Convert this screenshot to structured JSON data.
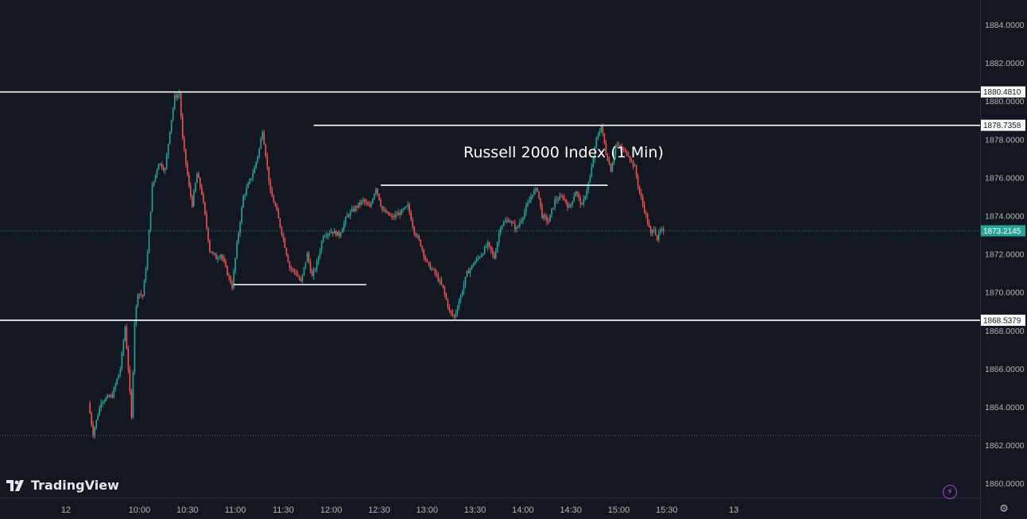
{
  "chart_data": {
    "type": "candlestick",
    "title": "Russell 2000 Index (1 Min)",
    "ylim": [
      1859.5,
      1885.5
    ],
    "y_ticks": [
      "1860.0000",
      "1862.0000",
      "1864.0000",
      "1866.0000",
      "1868.0000",
      "1870.0000",
      "1872.0000",
      "1874.0000",
      "1876.0000",
      "1878.0000",
      "1880.0000",
      "1882.0000",
      "1884.0000"
    ],
    "x_ticks": [
      {
        "label": "12",
        "t": "09:14"
      },
      {
        "label": "10:00",
        "t": "10:00"
      },
      {
        "label": "10:30",
        "t": "10:30"
      },
      {
        "label": "11:00",
        "t": "11:00"
      },
      {
        "label": "11:30",
        "t": "11:30"
      },
      {
        "label": "12:00",
        "t": "12:00"
      },
      {
        "label": "12:30",
        "t": "12:30"
      },
      {
        "label": "13:00",
        "t": "13:00"
      },
      {
        "label": "13:30",
        "t": "13:30"
      },
      {
        "label": "14:00",
        "t": "14:00"
      },
      {
        "label": "14:30",
        "t": "14:30"
      },
      {
        "label": "15:00",
        "t": "15:00"
      },
      {
        "label": "15:30",
        "t": "15:30"
      },
      {
        "label": "13",
        "t": "16:12"
      }
    ],
    "last_price": 1873.2145,
    "last_price_label": "1873.2145",
    "session_low_dotted": 1862.5,
    "horizontal_levels": [
      {
        "value": 1880.481,
        "label": "1880.4810"
      },
      {
        "value": 1878.7358,
        "label": "1878.7358"
      },
      {
        "value": 1868.5379,
        "label": "1868.5379"
      }
    ],
    "trend_segments": [
      {
        "from": "11:52",
        "to": "12:49",
        "value": 1878.7358
      },
      {
        "from": "11:00",
        "to": "12:23",
        "value": 1870.4
      },
      {
        "from": "12:32",
        "to": "14:54",
        "value": 1875.6
      }
    ],
    "price_path": [
      [
        "09:30",
        1864.2
      ],
      [
        "09:33",
        1862.6
      ],
      [
        "09:38",
        1864.3
      ],
      [
        "09:45",
        1864.6
      ],
      [
        "09:50",
        1866.0
      ],
      [
        "09:53",
        1868.2
      ],
      [
        "09:55",
        1866.0
      ],
      [
        "09:57",
        1863.4
      ],
      [
        "09:59",
        1868.5
      ],
      [
        "10:01",
        1870.0
      ],
      [
        "10:04",
        1869.8
      ],
      [
        "10:07",
        1872.0
      ],
      [
        "10:10",
        1875.5
      ],
      [
        "10:14",
        1876.8
      ],
      [
        "10:18",
        1876.4
      ],
      [
        "10:21",
        1878.5
      ],
      [
        "10:24",
        1880.2
      ],
      [
        "10:27",
        1880.4
      ],
      [
        "10:29",
        1878.0
      ],
      [
        "10:33",
        1875.5
      ],
      [
        "10:35",
        1874.6
      ],
      [
        "10:38",
        1876.2
      ],
      [
        "10:41",
        1875.2
      ],
      [
        "10:43",
        1874.0
      ],
      [
        "10:46",
        1872.2
      ],
      [
        "10:50",
        1871.8
      ],
      [
        "10:53",
        1872.0
      ],
      [
        "10:57",
        1871.0
      ],
      [
        "11:00",
        1870.3
      ],
      [
        "11:03",
        1872.5
      ],
      [
        "11:07",
        1875.0
      ],
      [
        "11:11",
        1875.8
      ],
      [
        "11:14",
        1876.5
      ],
      [
        "11:17",
        1877.5
      ],
      [
        "11:19",
        1878.5
      ],
      [
        "11:21",
        1877.2
      ],
      [
        "11:24",
        1875.2
      ],
      [
        "11:27",
        1874.5
      ],
      [
        "11:32",
        1872.8
      ],
      [
        "11:36",
        1871.3
      ],
      [
        "11:40",
        1871.0
      ],
      [
        "11:43",
        1870.5
      ],
      [
        "11:47",
        1872.0
      ],
      [
        "11:50",
        1870.8
      ],
      [
        "11:53",
        1871.5
      ],
      [
        "11:57",
        1873.0
      ],
      [
        "12:02",
        1873.2
      ],
      [
        "12:07",
        1873.0
      ],
      [
        "12:12",
        1874.0
      ],
      [
        "12:18",
        1874.5
      ],
      [
        "12:22",
        1874.8
      ],
      [
        "12:26",
        1874.4
      ],
      [
        "12:30",
        1875.5
      ],
      [
        "12:34",
        1874.3
      ],
      [
        "12:40",
        1873.9
      ],
      [
        "12:46",
        1874.2
      ],
      [
        "12:50",
        1874.5
      ],
      [
        "12:54",
        1873.2
      ],
      [
        "12:58",
        1872.5
      ],
      [
        "13:02",
        1871.5
      ],
      [
        "13:07",
        1871.0
      ],
      [
        "13:12",
        1870.2
      ],
      [
        "13:16",
        1869.0
      ],
      [
        "13:19",
        1868.7
      ],
      [
        "13:23",
        1869.8
      ],
      [
        "13:27",
        1871.0
      ],
      [
        "13:32",
        1871.6
      ],
      [
        "13:36",
        1872.0
      ],
      [
        "13:40",
        1872.5
      ],
      [
        "13:44",
        1871.8
      ],
      [
        "13:48",
        1873.5
      ],
      [
        "13:53",
        1873.8
      ],
      [
        "13:58",
        1873.3
      ],
      [
        "14:03",
        1874.2
      ],
      [
        "14:08",
        1875.2
      ],
      [
        "14:11",
        1875.4
      ],
      [
        "14:14",
        1874.0
      ],
      [
        "14:18",
        1873.7
      ],
      [
        "14:22",
        1874.8
      ],
      [
        "14:27",
        1875.0
      ],
      [
        "14:31",
        1874.4
      ],
      [
        "14:35",
        1875.3
      ],
      [
        "14:39",
        1874.5
      ],
      [
        "14:44",
        1876.0
      ],
      [
        "14:48",
        1878.0
      ],
      [
        "14:51",
        1878.7
      ],
      [
        "14:54",
        1877.3
      ],
      [
        "14:57",
        1876.4
      ],
      [
        "15:00",
        1877.7
      ],
      [
        "15:04",
        1877.5
      ],
      [
        "15:08",
        1877.2
      ],
      [
        "15:12",
        1876.5
      ],
      [
        "15:15",
        1875.2
      ],
      [
        "15:19",
        1874.0
      ],
      [
        "15:22",
        1873.0
      ],
      [
        "15:24",
        1873.4
      ],
      [
        "15:26",
        1872.8
      ],
      [
        "15:28",
        1873.2
      ],
      [
        "15:29",
        1873.21
      ]
    ]
  },
  "brand": {
    "name": "TradingView"
  },
  "colors": {
    "background": "#131722",
    "up": "#26a69a",
    "down": "#ef5350",
    "level_line": "#ffffff",
    "last_price_tag": "#26a69a",
    "text": "#b2b5be"
  },
  "icons": {
    "replay": "lightning-icon",
    "settings": "gear-icon",
    "logo": "tradingview-logo-icon"
  }
}
